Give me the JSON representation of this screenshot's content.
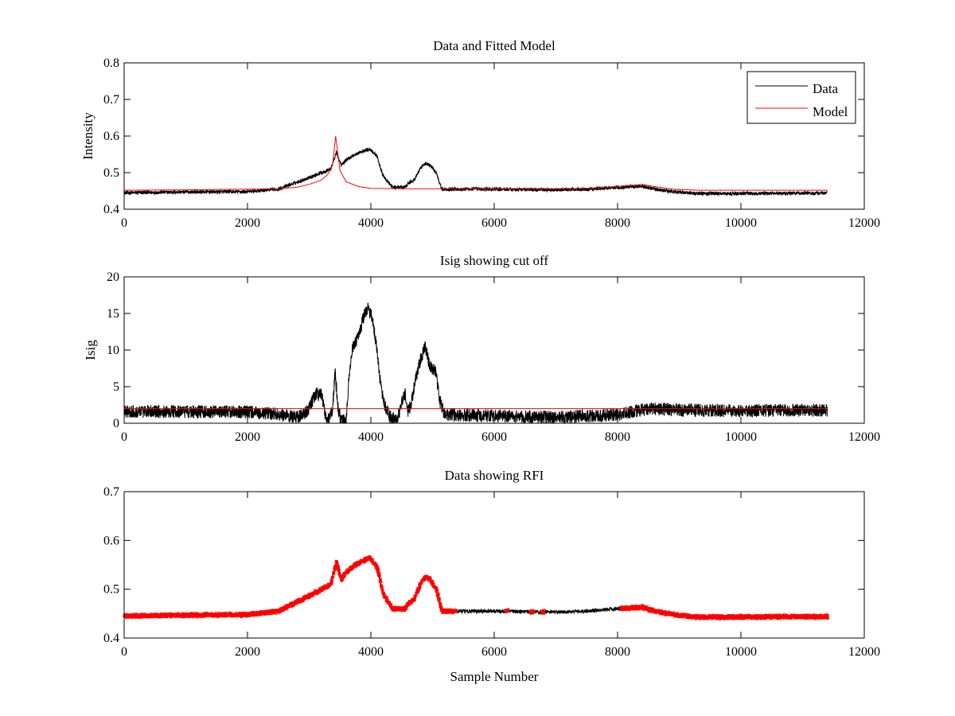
{
  "chart_data": [
    {
      "type": "line",
      "title": "Data and Fitted Model",
      "xlabel": "",
      "ylabel": "Intensity",
      "xlim": [
        0,
        12000
      ],
      "ylim": [
        0.4,
        0.8
      ],
      "xticks": [
        0,
        2000,
        4000,
        6000,
        8000,
        10000,
        12000
      ],
      "yticks": [
        0.4,
        0.5,
        0.6,
        0.7,
        0.8
      ],
      "grid": false,
      "legend_placement": "top-right",
      "series": [
        {
          "name": "Data",
          "color": "#000000",
          "style": "noisy",
          "noise": 0.005,
          "x": [
            0,
            1000,
            2000,
            2500,
            2900,
            3200,
            3350,
            3440,
            3520,
            3600,
            3750,
            3900,
            3980,
            4100,
            4200,
            4350,
            4550,
            4600,
            4700,
            4800,
            4880,
            4960,
            5060,
            5150,
            5500,
            6000,
            7000,
            7500,
            8000,
            8400,
            8600,
            8900,
            9300,
            10000,
            11000,
            11400
          ],
          "y": [
            0.445,
            0.447,
            0.448,
            0.455,
            0.48,
            0.5,
            0.51,
            0.555,
            0.52,
            0.535,
            0.55,
            0.56,
            0.565,
            0.545,
            0.49,
            0.46,
            0.46,
            0.47,
            0.48,
            0.51,
            0.525,
            0.52,
            0.5,
            0.455,
            0.455,
            0.455,
            0.453,
            0.455,
            0.46,
            0.463,
            0.455,
            0.448,
            0.443,
            0.443,
            0.444,
            0.444
          ]
        },
        {
          "name": "Model",
          "color": "#ff0000",
          "style": "smooth",
          "x": [
            0,
            1000,
            2000,
            2500,
            2800,
            3000,
            3200,
            3300,
            3380,
            3430,
            3460,
            3500,
            3600,
            3800,
            4000,
            4500,
            5000,
            6000,
            7000,
            7500,
            8000,
            8400,
            8600,
            8900,
            9300,
            10000,
            11400
          ],
          "y": [
            0.452,
            0.453,
            0.455,
            0.456,
            0.46,
            0.468,
            0.48,
            0.495,
            0.52,
            0.6,
            0.56,
            0.505,
            0.475,
            0.462,
            0.457,
            0.456,
            0.456,
            0.456,
            0.456,
            0.457,
            0.462,
            0.468,
            0.462,
            0.455,
            0.452,
            0.452,
            0.452
          ]
        }
      ]
    },
    {
      "type": "line",
      "title": "Isig showing cut off",
      "xlabel": "",
      "ylabel": "Isig",
      "xlim": [
        0,
        12000
      ],
      "ylim": [
        0,
        20
      ],
      "xticks": [
        0,
        2000,
        4000,
        6000,
        8000,
        10000,
        12000
      ],
      "yticks": [
        0,
        5,
        10,
        15,
        20
      ],
      "grid": false,
      "series": [
        {
          "color": "#000000",
          "style": "noisy",
          "noise": 0.9,
          "x": [
            0,
            1000,
            2000,
            2600,
            2800,
            2900,
            3000,
            3100,
            3200,
            3250,
            3280,
            3330,
            3380,
            3420,
            3470,
            3520,
            3600,
            3650,
            3700,
            3800,
            3900,
            3960,
            4020,
            4100,
            4150,
            4200,
            4300,
            4400,
            4450,
            4500,
            4560,
            4600,
            4650,
            4700,
            4800,
            4880,
            4950,
            5050,
            5120,
            5200,
            6000,
            7000,
            7500,
            8000,
            8200,
            8500,
            9000,
            10000,
            11000,
            11400
          ],
          "y": [
            1.6,
            1.6,
            1.5,
            1.2,
            0.8,
            1.2,
            2.0,
            4.0,
            4.0,
            1.5,
            0.5,
            0.5,
            2.0,
            7.0,
            2.0,
            0.3,
            0.5,
            7.0,
            10.0,
            12.0,
            15.0,
            15.7,
            14.5,
            10.0,
            6.0,
            3.0,
            1.0,
            0.3,
            1.0,
            3.0,
            4.0,
            1.5,
            2.5,
            5.0,
            8.5,
            10.5,
            8.0,
            7.0,
            3.0,
            1.2,
            1.0,
            0.8,
            1.0,
            1.2,
            1.5,
            2.0,
            1.8,
            1.7,
            1.8,
            1.8
          ]
        },
        {
          "color": "#ff0000",
          "style": "flat",
          "x": [
            0,
            11400
          ],
          "y": [
            2.0,
            2.0
          ]
        }
      ]
    },
    {
      "type": "scatter",
      "title": "Data showing RFI",
      "xlabel": "Sample Number",
      "ylabel": "",
      "xlim": [
        0,
        12000
      ],
      "ylim": [
        0.4,
        0.7
      ],
      "xticks": [
        0,
        2000,
        4000,
        6000,
        8000,
        10000,
        12000
      ],
      "yticks": [
        0.4,
        0.5,
        0.6,
        0.7
      ],
      "grid": false,
      "series": [
        {
          "color": "#000000",
          "style": "noisy",
          "noise": 0.004,
          "x": [
            0,
            1000,
            2000,
            2500,
            2900,
            3200,
            3350,
            3440,
            3520,
            3600,
            3750,
            3900,
            3980,
            4100,
            4200,
            4350,
            4550,
            4600,
            4700,
            4800,
            4880,
            4960,
            5060,
            5150,
            5500,
            6000,
            7000,
            7500,
            8000,
            8400,
            8600,
            8900,
            9300,
            10000,
            11000,
            11400
          ],
          "y": [
            0.445,
            0.447,
            0.448,
            0.455,
            0.48,
            0.5,
            0.51,
            0.555,
            0.52,
            0.535,
            0.55,
            0.56,
            0.565,
            0.545,
            0.49,
            0.46,
            0.46,
            0.47,
            0.48,
            0.51,
            0.525,
            0.52,
            0.5,
            0.455,
            0.455,
            0.455,
            0.453,
            0.455,
            0.46,
            0.463,
            0.455,
            0.448,
            0.443,
            0.443,
            0.444,
            0.444
          ]
        },
        {
          "color": "#ff0000",
          "style": "band",
          "noise": 0.012,
          "ranges": [
            [
              0,
              5380
            ],
            [
              6180,
              6230
            ],
            [
              6580,
              6640
            ],
            [
              6760,
              6810
            ],
            [
              8050,
              11400
            ]
          ]
        }
      ]
    }
  ]
}
